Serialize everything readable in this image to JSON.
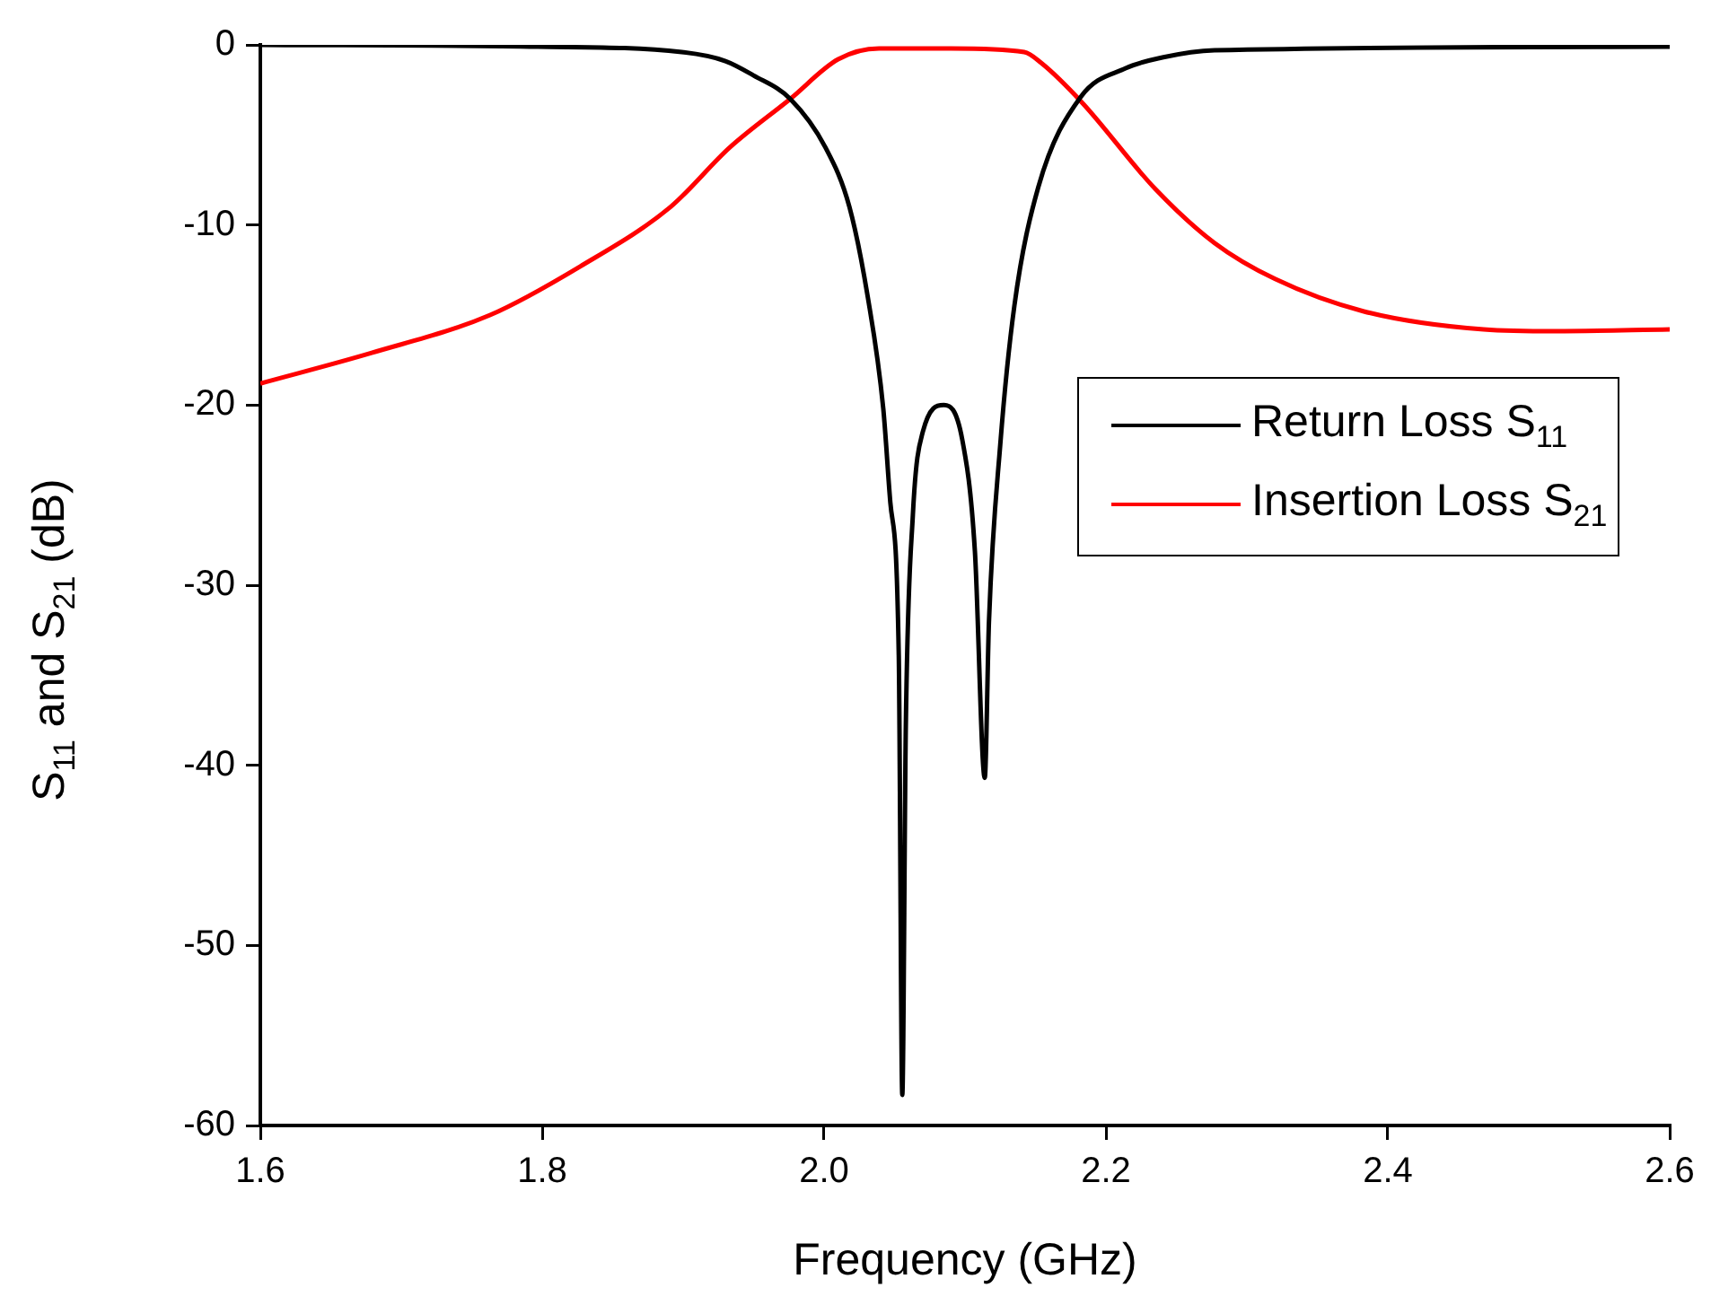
{
  "chart_data": {
    "type": "line",
    "xlabel": "Frequency (GHz)",
    "ylabel": "S$_{11}$ and S$_{21}$ (dB)",
    "xlim": [
      1.6,
      2.6
    ],
    "xticks": [
      1.6,
      1.8,
      {
        "value": 2,
        "label": "2.0"
      },
      2.2,
      2.4,
      2.6
    ],
    "ylim": [
      -60,
      0
    ],
    "yticks": [
      -60,
      -50,
      -40,
      -30,
      -20,
      -10,
      0
    ],
    "grid": false,
    "legend": "right",
    "marker": "none",
    "line_style": "solid",
    "series": [
      {
        "name": "Return Loss S$_{11}$",
        "color": "#000000",
        "x": [
          1.6,
          1.797,
          1.899,
          1.93,
          1.95,
          1.976,
          2.001,
          2.018,
          2.031,
          2.042,
          2.047,
          2.053,
          2.0555,
          2.058,
          2.063,
          2.07,
          2.085,
          2.098,
          2.107,
          2.114,
          2.117,
          2.125,
          2.135,
          2.152,
          2.182,
          2.214,
          2.24,
          2.277,
          2.6
        ],
        "values": [
          0,
          -0.1,
          -0.4,
          -0.9,
          -1.7,
          -3.0,
          -5.7,
          -9.0,
          -14,
          -20.2,
          -25.4,
          -33.9,
          -58.3,
          -37.8,
          -26.1,
          -21.5,
          -20.0,
          -21.9,
          -28.1,
          -40.7,
          -32.0,
          -22.2,
          -14.5,
          -7.9,
          -2.9,
          -1.3,
          -0.7,
          -0.3,
          -0.1
        ]
      },
      {
        "name": "Insertion Loss S$_{21}$",
        "color": "#ff0000",
        "x": [
          1.6,
          1.679,
          1.763,
          1.827,
          1.891,
          1.933,
          1.976,
          2.01,
          2.039,
          2.09,
          2.142,
          2.154,
          2.183,
          2.235,
          2.277,
          2.32,
          2.383,
          2.468,
          2.519,
          2.6
        ],
        "values": [
          -18.8,
          -17.1,
          -15.0,
          -12.3,
          -9.0,
          -5.7,
          -3.0,
          -0.8,
          -0.2,
          -0.2,
          -0.4,
          -1.0,
          -3.2,
          -8.0,
          -11.0,
          -13.0,
          -14.8,
          -15.8,
          -15.9,
          -15.8
        ]
      }
    ]
  }
}
